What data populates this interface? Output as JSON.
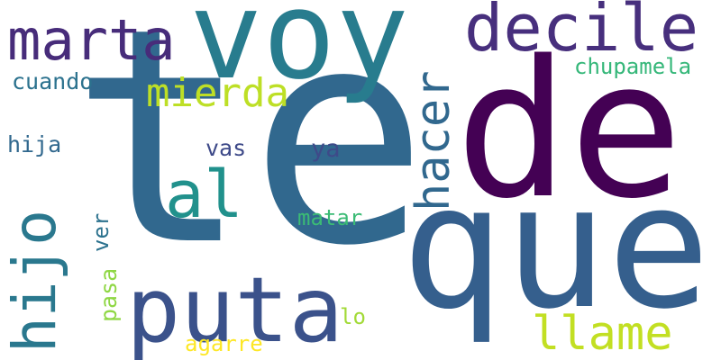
{
  "words": [
    {
      "id": "te",
      "text": "te",
      "color": "#31688e"
    },
    {
      "id": "de",
      "text": "de",
      "color": "#440154"
    },
    {
      "id": "que",
      "text": "que",
      "color": "#355f8d"
    },
    {
      "id": "voy",
      "text": "voy",
      "color": "#287c8e"
    },
    {
      "id": "puta",
      "text": "puta",
      "color": "#3b528b"
    },
    {
      "id": "decile",
      "text": "decile",
      "color": "#472f7d"
    },
    {
      "id": "marta",
      "text": "marta",
      "color": "#472c7a"
    },
    {
      "id": "hacer",
      "text": "hacer",
      "color": "#31688e"
    },
    {
      "id": "mierda",
      "text": "mierda",
      "color": "#bddf26"
    },
    {
      "id": "al",
      "text": "al",
      "color": "#21918c"
    },
    {
      "id": "hijo",
      "text": "hijo",
      "color": "#2a788e"
    },
    {
      "id": "llame",
      "text": "llame",
      "color": "#c2df23"
    },
    {
      "id": "chupamela",
      "text": "chupamela",
      "color": "#35b779"
    },
    {
      "id": "cuando",
      "text": "cuando",
      "color": "#2c728e"
    },
    {
      "id": "hija",
      "text": "hija",
      "color": "#31688e"
    },
    {
      "id": "vas",
      "text": "vas",
      "color": "#3e4a89"
    },
    {
      "id": "ya",
      "text": "ya",
      "color": "#3e4a89"
    },
    {
      "id": "matar",
      "text": "matar",
      "color": "#3bbb75"
    },
    {
      "id": "ver",
      "text": "ver",
      "color": "#2c728e"
    },
    {
      "id": "pasa",
      "text": "pasa",
      "color": "#8fd744"
    },
    {
      "id": "lo",
      "text": "lo",
      "color": "#a2da37"
    },
    {
      "id": "agarre",
      "text": "agarre",
      "color": "#fde725"
    }
  ]
}
